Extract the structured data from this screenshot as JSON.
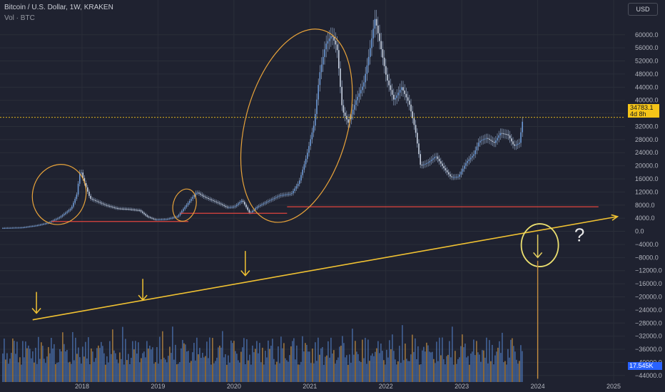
{
  "header": {
    "title": "Bitcoin / U.S. Dollar, 1W, KRAKEN",
    "subtitle": "Vol · BTC"
  },
  "currency_button": "USD",
  "last_price": {
    "value": "34783.1",
    "countdown": "4d 8h"
  },
  "volume_tag": "17.545K",
  "annotation_question": "?",
  "colors": {
    "background": "#1f2230",
    "candle": "#6d9ad6",
    "volume_blue": "#4f78b8",
    "volume_orange": "#c99040",
    "annotation_orange": "#e8a33a",
    "trend_yellow": "#f1c232",
    "support_red": "#e0443e",
    "price_tag": "#f5c518",
    "volume_tag": "#2962ff"
  },
  "chart_data": {
    "type": "candlestick",
    "title": "Bitcoin / U.S. Dollar, 1W, KRAKEN",
    "x_tick_labels": [
      "2018",
      "2019",
      "2020",
      "2021",
      "2022",
      "2023",
      "2024",
      "2025"
    ],
    "y_tick_labels": [
      "60000.0",
      "56000.0",
      "52000.0",
      "48000.0",
      "44000.0",
      "40000.0",
      "36000.0",
      "32000.0",
      "28000.0",
      "24000.0",
      "20000.0",
      "16000.0",
      "12000.0",
      "8000.0",
      "4000.0",
      "0.0",
      "−4000.0",
      "−8000.0",
      "−12000.0",
      "−16000.0",
      "−20000.0",
      "−24000.0",
      "−28000.0",
      "−32000.0",
      "−36000.0",
      "−40000.0",
      "−44000.0"
    ],
    "y_ticks": [
      60000,
      56000,
      52000,
      48000,
      44000,
      40000,
      36000,
      32000,
      28000,
      24000,
      20000,
      16000,
      12000,
      8000,
      4000,
      0,
      -4000,
      -8000,
      -12000,
      -16000,
      -20000,
      -24000,
      -28000,
      -32000,
      -36000,
      -40000,
      -44000
    ],
    "ylim": [
      -46000,
      68000
    ],
    "xlim": [
      2016.92,
      2025.15
    ],
    "last_price": 34783.1,
    "price_path": [
      [
        2016.95,
        1000
      ],
      [
        2017.2,
        1150
      ],
      [
        2017.4,
        1800
      ],
      [
        2017.55,
        2600
      ],
      [
        2017.7,
        4300
      ],
      [
        2017.85,
        7000
      ],
      [
        2017.92,
        11000
      ],
      [
        2017.97,
        19000
      ],
      [
        2018.02,
        15000
      ],
      [
        2018.1,
        10000
      ],
      [
        2018.2,
        9000
      ],
      [
        2018.3,
        8000
      ],
      [
        2018.45,
        7000
      ],
      [
        2018.6,
        6800
      ],
      [
        2018.75,
        6400
      ],
      [
        2018.85,
        4500
      ],
      [
        2018.95,
        3600
      ],
      [
        2019.1,
        3700
      ],
      [
        2019.25,
        4500
      ],
      [
        2019.35,
        7500
      ],
      [
        2019.45,
        10500
      ],
      [
        2019.5,
        12000
      ],
      [
        2019.6,
        10500
      ],
      [
        2019.7,
        9500
      ],
      [
        2019.8,
        8500
      ],
      [
        2019.9,
        7300
      ],
      [
        2020.0,
        7500
      ],
      [
        2020.1,
        9500
      ],
      [
        2020.2,
        5500
      ],
      [
        2020.3,
        7500
      ],
      [
        2020.45,
        9300
      ],
      [
        2020.6,
        11000
      ],
      [
        2020.75,
        11500
      ],
      [
        2020.85,
        15000
      ],
      [
        2020.95,
        23000
      ],
      [
        2021.05,
        33000
      ],
      [
        2021.12,
        48000
      ],
      [
        2021.2,
        57000
      ],
      [
        2021.28,
        60000
      ],
      [
        2021.35,
        56000
      ],
      [
        2021.42,
        37000
      ],
      [
        2021.5,
        33000
      ],
      [
        2021.6,
        40000
      ],
      [
        2021.7,
        45000
      ],
      [
        2021.78,
        55000
      ],
      [
        2021.85,
        65000
      ],
      [
        2021.92,
        57000
      ],
      [
        2022.0,
        47000
      ],
      [
        2022.1,
        40000
      ],
      [
        2022.2,
        44000
      ],
      [
        2022.3,
        39000
      ],
      [
        2022.38,
        31000
      ],
      [
        2022.45,
        20000
      ],
      [
        2022.55,
        21000
      ],
      [
        2022.65,
        23000
      ],
      [
        2022.75,
        19500
      ],
      [
        2022.85,
        16500
      ],
      [
        2022.95,
        16700
      ],
      [
        2023.05,
        21000
      ],
      [
        2023.15,
        23500
      ],
      [
        2023.22,
        27500
      ],
      [
        2023.32,
        28500
      ],
      [
        2023.42,
        27000
      ],
      [
        2023.5,
        30000
      ],
      [
        2023.6,
        29500
      ],
      [
        2023.68,
        26000
      ],
      [
        2023.75,
        27000
      ],
      [
        2023.8,
        34783
      ]
    ],
    "volume_range": [
      2016.95,
      2023.8
    ],
    "support_lines": [
      {
        "x": [
          2017.6,
          2019.4
        ],
        "y": 3000
      },
      {
        "x": [
          2019.3,
          2020.7
        ],
        "y": 5500
      },
      {
        "x": [
          2020.7,
          2024.8
        ],
        "y": 7500
      }
    ],
    "trend_line": {
      "x": [
        2017.35,
        2025.05
      ],
      "y": [
        -27000,
        4500
      ]
    },
    "ellipses": [
      {
        "x": [
          2017.35,
          2018.05
        ],
        "y": [
          2000,
          20500
        ]
      },
      {
        "x": [
          2019.2,
          2019.5
        ],
        "y": [
          3000,
          13000
        ]
      },
      {
        "x": [
          2020.15,
          2021.5
        ],
        "y": [
          2000,
          62500
        ]
      }
    ],
    "down_arrows": [
      {
        "x": 2017.4,
        "y": [
          -18500,
          -25000
        ]
      },
      {
        "x": 2018.8,
        "y": [
          -14500,
          -21000
        ]
      },
      {
        "x": 2020.15,
        "y": [
          -6000,
          -13500
        ]
      },
      {
        "x": 2024.0,
        "y": [
          -1000,
          -8000
        ]
      }
    ],
    "circle_marker": {
      "x": 2024.0,
      "y": -2500
    },
    "vertical_marker": {
      "x": 2024.0,
      "y": [
        -9000,
        -45000
      ]
    },
    "question_mark": {
      "x": 2024.55,
      "y": -3000
    }
  }
}
